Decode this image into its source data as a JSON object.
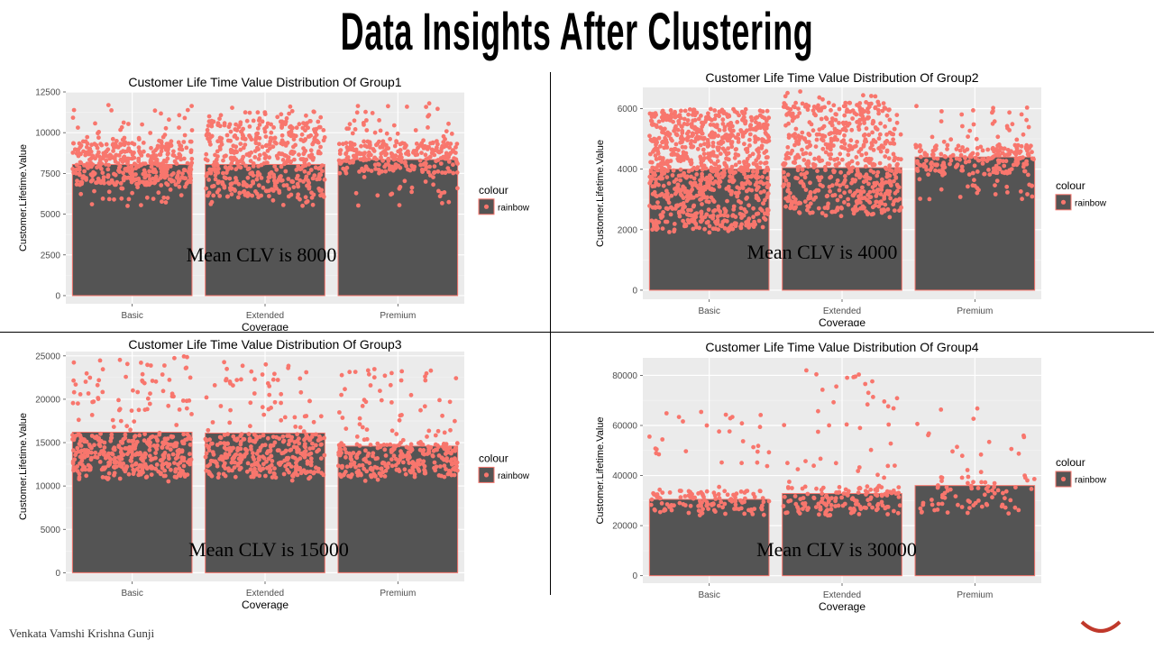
{
  "slide": {
    "title": "Data Insights After Clustering",
    "footer": "Venkata Vamshi Krishna Gunji"
  },
  "colors": {
    "bar_fill": "#545454",
    "bar_border": "#f8766d",
    "point": "#f8766d",
    "panel_bg": "#ebebeb",
    "grid": "#ffffff"
  },
  "chart_data": [
    {
      "type": "bar",
      "title": "Customer Life Time Value Distribution Of Group1",
      "xlabel": "Coverage",
      "ylabel": "Customer.Lifetime.Value",
      "categories": [
        "Basic",
        "Extended",
        "Premium"
      ],
      "values": [
        8050,
        8050,
        8350
      ],
      "ylim": [
        -500,
        12500
      ],
      "yticks": [
        0,
        2500,
        5000,
        7500,
        10000,
        12500
      ],
      "ytick_labels": [
        "0",
        "2500",
        "5000",
        "7500",
        "10000",
        "12500"
      ],
      "legend": {
        "title": "colour",
        "label": "rainbow",
        "position": "right"
      },
      "annotation": "Mean CLV is 8000",
      "jitter": [
        {
          "min": 5500,
          "max": 11800,
          "n": 450,
          "dense_min": 6800,
          "dense_max": 9500
        },
        {
          "min": 5500,
          "max": 11900,
          "n": 480,
          "dense_min": 6000,
          "dense_max": 10800
        },
        {
          "min": 5500,
          "max": 11800,
          "n": 320,
          "dense_min": 7500,
          "dense_max": 9500
        }
      ]
    },
    {
      "type": "bar",
      "title": "Customer Life Time Value Distribution Of Group2",
      "xlabel": "Coverage",
      "ylabel": "Customer.Lifetime.Value",
      "categories": [
        "Basic",
        "Extended",
        "Premium"
      ],
      "values": [
        4000,
        4050,
        4400
      ],
      "ylim": [
        -300,
        6700
      ],
      "yticks": [
        0,
        2000,
        4000,
        6000
      ],
      "ytick_labels": [
        "0",
        "2000",
        "4000",
        "6000"
      ],
      "legend": {
        "title": "colour",
        "label": "rainbow",
        "position": "right"
      },
      "annotation": "Mean CLV is 4000",
      "jitter": [
        {
          "min": 1900,
          "max": 6000,
          "n": 900,
          "dense_min": 2000,
          "dense_max": 6000
        },
        {
          "min": 2400,
          "max": 6600,
          "n": 600,
          "dense_min": 2500,
          "dense_max": 6200
        },
        {
          "min": 3000,
          "max": 6100,
          "n": 250,
          "dense_min": 3800,
          "dense_max": 4800
        }
      ]
    },
    {
      "type": "bar",
      "title": "Customer Life Time Value Distribution Of Group3",
      "xlabel": "Coverage",
      "ylabel": "Customer.Lifetime.Value",
      "categories": [
        "Basic",
        "Extended",
        "Premium"
      ],
      "values": [
        16200,
        16100,
        14600
      ],
      "ylim": [
        -1000,
        25500
      ],
      "yticks": [
        0,
        5000,
        10000,
        15000,
        20000,
        25000
      ],
      "ytick_labels": [
        "0",
        "5000",
        "10000",
        "15000",
        "20000",
        "25000"
      ],
      "legend": {
        "title": "colour",
        "label": "rainbow",
        "position": "right"
      },
      "annotation": "Mean CLV is 15000",
      "jitter": [
        {
          "min": 10500,
          "max": 25000,
          "n": 420,
          "dense_min": 11000,
          "dense_max": 16000
        },
        {
          "min": 10500,
          "max": 24500,
          "n": 360,
          "dense_min": 11000,
          "dense_max": 16000
        },
        {
          "min": 10500,
          "max": 23500,
          "n": 300,
          "dense_min": 11000,
          "dense_max": 15000
        }
      ]
    },
    {
      "type": "bar",
      "title": "Customer Life Time Value Distribution Of Group4",
      "xlabel": "Coverage",
      "ylabel": "Customer.Lifetime.Value",
      "categories": [
        "Basic",
        "Extended",
        "Premium"
      ],
      "values": [
        30500,
        32800,
        36000
      ],
      "ylim": [
        -3000,
        87000
      ],
      "yticks": [
        0,
        20000,
        40000,
        60000,
        80000
      ],
      "ytick_labels": [
        "0",
        "20000",
        "40000",
        "60000",
        "80000"
      ],
      "legend": {
        "title": "colour",
        "label": "rainbow",
        "position": "right"
      },
      "annotation": "Mean CLV is 30000",
      "jitter": [
        {
          "min": 24000,
          "max": 66000,
          "n": 150,
          "dense_min": 24000,
          "dense_max": 34000
        },
        {
          "min": 23500,
          "max": 83000,
          "n": 180,
          "dense_min": 24000,
          "dense_max": 36000
        },
        {
          "min": 23500,
          "max": 68000,
          "n": 90,
          "dense_min": 24000,
          "dense_max": 40000
        }
      ]
    }
  ]
}
